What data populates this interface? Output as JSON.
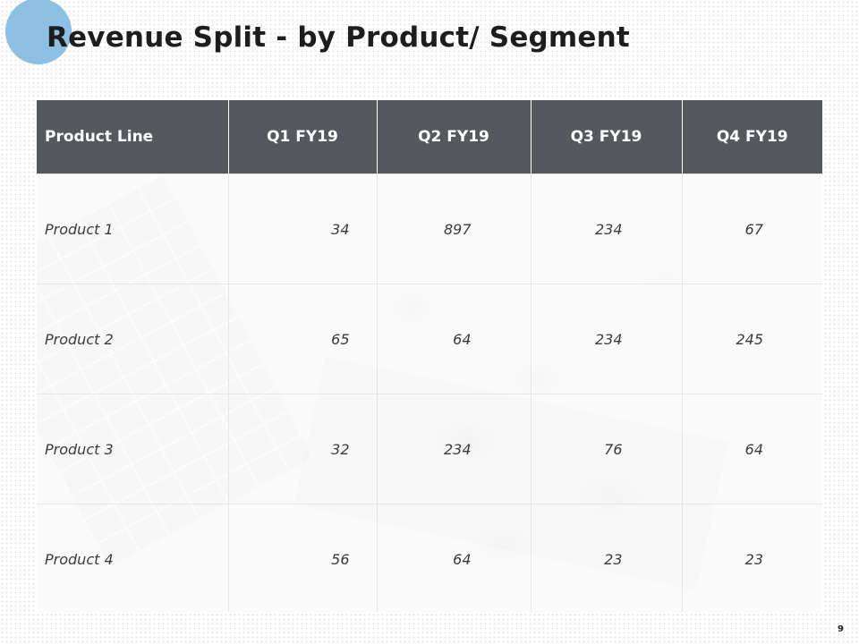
{
  "slide": {
    "title": "Revenue Split - by Product/ Segment",
    "page_number": "9"
  },
  "table": {
    "headers": [
      "Product Line",
      "Q1 FY19",
      "Q2 FY19",
      "Q3 FY19",
      "Q4 FY19"
    ],
    "rows": [
      [
        "Product 1",
        "34",
        "897",
        "234",
        "67"
      ],
      [
        "Product 2",
        "65",
        "64",
        "234",
        "245"
      ],
      [
        "Product 3",
        "32",
        "234",
        "76",
        "64"
      ],
      [
        "Product 4",
        "56",
        "64",
        "23",
        "23"
      ]
    ]
  },
  "colors": {
    "accent_circle": "#8ec0e4",
    "header_background": "#55585d",
    "header_text": "#ffffff"
  }
}
